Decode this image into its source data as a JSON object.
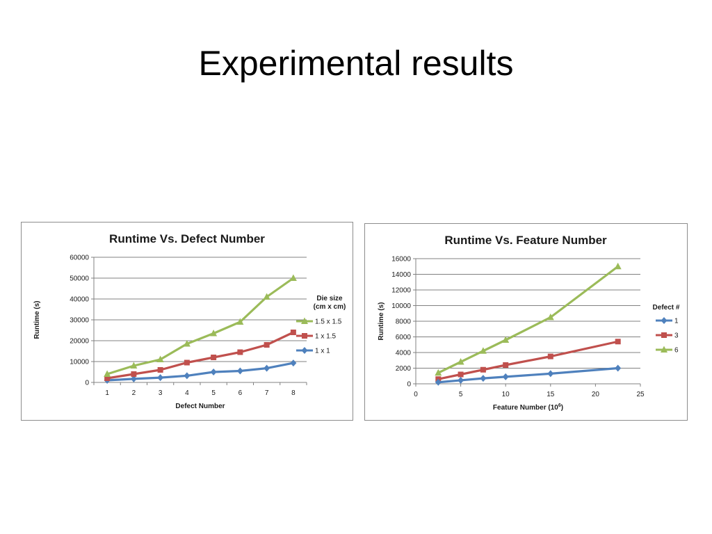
{
  "slide": {
    "title": "Experimental results"
  },
  "chart_data": [
    {
      "type": "line",
      "title": "Runtime Vs. Defect Number",
      "xlabel": "Defect Number",
      "ylabel": "Runtime (s)",
      "categories": [
        "1",
        "2",
        "3",
        "4",
        "5",
        "6",
        "7",
        "8"
      ],
      "ylim": [
        0,
        60000
      ],
      "yticks": [
        "0",
        "10000",
        "20000",
        "30000",
        "40000",
        "50000",
        "60000"
      ],
      "grid": true,
      "legend": {
        "title": "Die size",
        "subtitle": "(cm x cm)",
        "position": "right"
      },
      "series": [
        {
          "name": "1.5 x 1.5",
          "color": "#9bbb59",
          "marker": "triangle",
          "values": [
            4000,
            8000,
            11000,
            18500,
            23500,
            29000,
            41000,
            50000
          ]
        },
        {
          "name": "1 x 1.5",
          "color": "#c0504d",
          "marker": "square",
          "values": [
            2000,
            4000,
            6000,
            9500,
            12000,
            14500,
            18000,
            24000
          ]
        },
        {
          "name": "1 x 1",
          "color": "#4f81bd",
          "marker": "diamond",
          "values": [
            1000,
            1700,
            2300,
            3200,
            5000,
            5500,
            6800,
            9300
          ]
        }
      ]
    },
    {
      "type": "line",
      "title": "Runtime Vs. Feature Number",
      "xlabel": "Feature Number (10",
      "xlabel_sup": "6",
      "xlabel_end": ")",
      "ylabel": "Runtime (s)",
      "xlim": [
        0,
        25
      ],
      "xticks": [
        "0",
        "5",
        "10",
        "15",
        "20",
        "25"
      ],
      "ylim": [
        0,
        16000
      ],
      "yticks": [
        "0",
        "2000",
        "4000",
        "6000",
        "8000",
        "10000",
        "12000",
        "14000",
        "16000"
      ],
      "grid": true,
      "legend": {
        "title": "Defect #",
        "position": "right"
      },
      "series": [
        {
          "name": "1",
          "color": "#4f81bd",
          "marker": "diamond",
          "x": [
            2.5,
            5,
            7.5,
            10,
            15,
            22.5
          ],
          "values": [
            200,
            450,
            700,
            900,
            1300,
            2000
          ]
        },
        {
          "name": "3",
          "color": "#c0504d",
          "marker": "square",
          "x": [
            2.5,
            5,
            7.5,
            10,
            15,
            22.5
          ],
          "values": [
            600,
            1200,
            1800,
            2400,
            3500,
            5400
          ]
        },
        {
          "name": "6",
          "color": "#9bbb59",
          "marker": "triangle",
          "x": [
            2.5,
            5,
            7.5,
            10,
            15,
            22.5
          ],
          "values": [
            1400,
            2800,
            4200,
            5600,
            8500,
            15000
          ]
        }
      ]
    }
  ]
}
